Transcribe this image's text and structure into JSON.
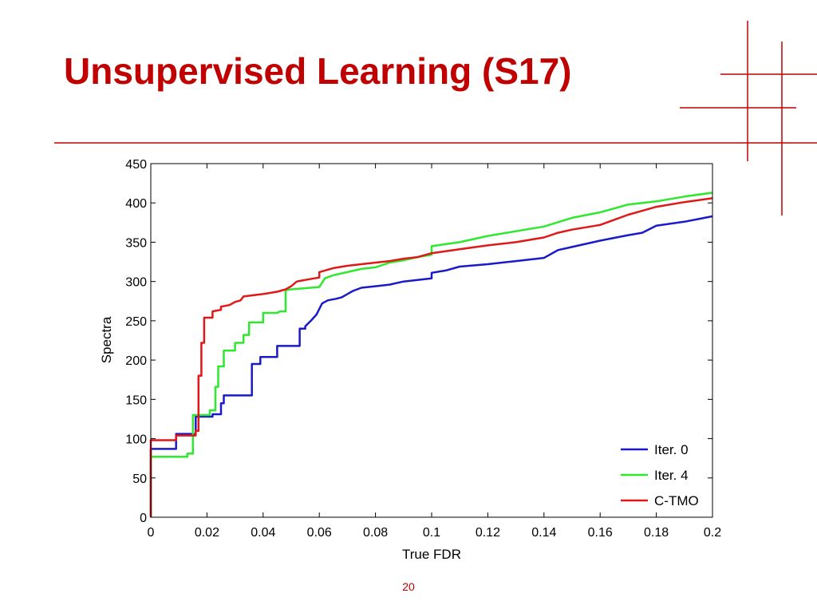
{
  "slide": {
    "title": "Unsupervised Learning (S17)",
    "page_number": "20",
    "accent_color": "#c00000"
  },
  "chart_data": {
    "type": "line",
    "xlabel": "True FDR",
    "ylabel": "Spectra",
    "xlim": [
      0,
      0.2
    ],
    "ylim": [
      0,
      450
    ],
    "x_ticks": [
      0,
      0.02,
      0.04,
      0.06,
      0.08,
      0.1,
      0.12,
      0.14,
      0.16,
      0.18,
      0.2
    ],
    "x_tick_labels": [
      "0",
      "0.02",
      "0.04",
      "0.06",
      "0.08",
      "0.1",
      "0.12",
      "0.14",
      "0.16",
      "0.18",
      "0.2"
    ],
    "y_ticks": [
      0,
      50,
      100,
      150,
      200,
      250,
      300,
      350,
      400,
      450
    ],
    "y_tick_labels": [
      "0",
      "50",
      "100",
      "150",
      "200",
      "250",
      "300",
      "350",
      "400",
      "450"
    ],
    "grid": false,
    "legend_position": "bottom-right",
    "series": [
      {
        "name": "Iter. 0",
        "color": "#1a1ac8",
        "points": [
          [
            0,
            0
          ],
          [
            0,
            87
          ],
          [
            0.009,
            87
          ],
          [
            0.009,
            106
          ],
          [
            0.016,
            106
          ],
          [
            0.016,
            128
          ],
          [
            0.022,
            128
          ],
          [
            0.022,
            131
          ],
          [
            0.025,
            131
          ],
          [
            0.025,
            145
          ],
          [
            0.026,
            145
          ],
          [
            0.026,
            155
          ],
          [
            0.036,
            155
          ],
          [
            0.036,
            195
          ],
          [
            0.039,
            195
          ],
          [
            0.039,
            204
          ],
          [
            0.045,
            204
          ],
          [
            0.045,
            218
          ],
          [
            0.053,
            218
          ],
          [
            0.053,
            240
          ],
          [
            0.055,
            240
          ],
          [
            0.055,
            243
          ],
          [
            0.057,
            250
          ],
          [
            0.059,
            258
          ],
          [
            0.06,
            265
          ],
          [
            0.061,
            272
          ],
          [
            0.063,
            276
          ],
          [
            0.066,
            278
          ],
          [
            0.068,
            280
          ],
          [
            0.07,
            284
          ],
          [
            0.072,
            288
          ],
          [
            0.075,
            292
          ],
          [
            0.08,
            294
          ],
          [
            0.085,
            296
          ],
          [
            0.09,
            300
          ],
          [
            0.095,
            302
          ],
          [
            0.1,
            304
          ],
          [
            0.1,
            311
          ],
          [
            0.105,
            314
          ],
          [
            0.11,
            319
          ],
          [
            0.12,
            322
          ],
          [
            0.13,
            326
          ],
          [
            0.14,
            330
          ],
          [
            0.145,
            340
          ],
          [
            0.15,
            344
          ],
          [
            0.16,
            352
          ],
          [
            0.17,
            359
          ],
          [
            0.175,
            362
          ],
          [
            0.18,
            371
          ],
          [
            0.19,
            376
          ],
          [
            0.2,
            383
          ]
        ]
      },
      {
        "name": "Iter. 4",
        "color": "#2ee82e",
        "points": [
          [
            0,
            0
          ],
          [
            0,
            77
          ],
          [
            0.013,
            77
          ],
          [
            0.013,
            81
          ],
          [
            0.015,
            81
          ],
          [
            0.015,
            130
          ],
          [
            0.021,
            130
          ],
          [
            0.021,
            136
          ],
          [
            0.023,
            136
          ],
          [
            0.023,
            166
          ],
          [
            0.024,
            166
          ],
          [
            0.024,
            192
          ],
          [
            0.026,
            192
          ],
          [
            0.026,
            212
          ],
          [
            0.03,
            212
          ],
          [
            0.03,
            222
          ],
          [
            0.033,
            222
          ],
          [
            0.033,
            232
          ],
          [
            0.035,
            232
          ],
          [
            0.035,
            248
          ],
          [
            0.04,
            248
          ],
          [
            0.04,
            260
          ],
          [
            0.045,
            260
          ],
          [
            0.046,
            262
          ],
          [
            0.048,
            262
          ],
          [
            0.048,
            289
          ],
          [
            0.05,
            290
          ],
          [
            0.06,
            293
          ],
          [
            0.062,
            304
          ],
          [
            0.065,
            308
          ],
          [
            0.07,
            312
          ],
          [
            0.075,
            316
          ],
          [
            0.08,
            318
          ],
          [
            0.085,
            324
          ],
          [
            0.09,
            327
          ],
          [
            0.095,
            331
          ],
          [
            0.1,
            334
          ],
          [
            0.1,
            345
          ],
          [
            0.11,
            350
          ],
          [
            0.12,
            358
          ],
          [
            0.13,
            364
          ],
          [
            0.14,
            370
          ],
          [
            0.15,
            381
          ],
          [
            0.16,
            388
          ],
          [
            0.17,
            398
          ],
          [
            0.18,
            402
          ],
          [
            0.19,
            408
          ],
          [
            0.2,
            413
          ]
        ]
      },
      {
        "name": "C-TMO",
        "color": "#e01818",
        "points": [
          [
            0,
            0
          ],
          [
            0,
            98
          ],
          [
            0.009,
            98
          ],
          [
            0.009,
            104
          ],
          [
            0.016,
            104
          ],
          [
            0.016,
            110
          ],
          [
            0.017,
            110
          ],
          [
            0.017,
            180
          ],
          [
            0.018,
            180
          ],
          [
            0.018,
            222
          ],
          [
            0.019,
            222
          ],
          [
            0.019,
            254
          ],
          [
            0.022,
            254
          ],
          [
            0.022,
            262
          ],
          [
            0.025,
            264
          ],
          [
            0.025,
            268
          ],
          [
            0.028,
            270
          ],
          [
            0.03,
            274
          ],
          [
            0.032,
            276
          ],
          [
            0.033,
            281
          ],
          [
            0.04,
            284
          ],
          [
            0.045,
            287
          ],
          [
            0.048,
            290
          ],
          [
            0.05,
            294
          ],
          [
            0.052,
            300
          ],
          [
            0.055,
            302
          ],
          [
            0.06,
            305
          ],
          [
            0.06,
            312
          ],
          [
            0.065,
            317
          ],
          [
            0.07,
            320
          ],
          [
            0.08,
            324
          ],
          [
            0.085,
            326
          ],
          [
            0.09,
            329
          ],
          [
            0.095,
            331
          ],
          [
            0.1,
            336
          ],
          [
            0.11,
            341
          ],
          [
            0.12,
            346
          ],
          [
            0.13,
            350
          ],
          [
            0.14,
            356
          ],
          [
            0.145,
            362
          ],
          [
            0.15,
            366
          ],
          [
            0.16,
            372
          ],
          [
            0.17,
            385
          ],
          [
            0.175,
            390
          ],
          [
            0.18,
            395
          ],
          [
            0.19,
            401
          ],
          [
            0.2,
            406
          ]
        ]
      }
    ]
  }
}
